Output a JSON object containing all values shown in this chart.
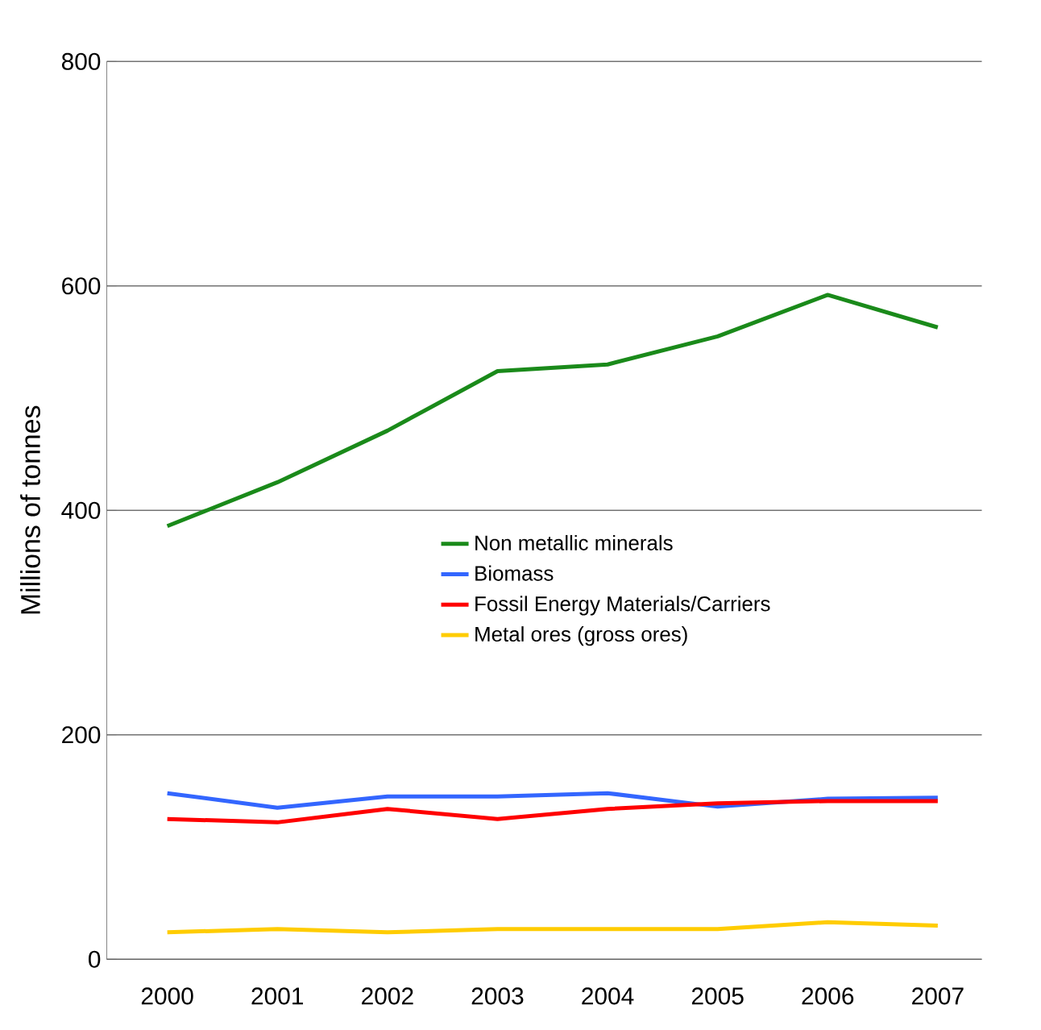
{
  "chart_data": {
    "type": "line",
    "ylabel": "Millions of tonnes",
    "categories": [
      "2000",
      "2001",
      "2002",
      "2003",
      "2004",
      "2005",
      "2006",
      "2007"
    ],
    "series": [
      {
        "name": "Non metallic minerals",
        "color": "#1a8a1a",
        "values": [
          386,
          425,
          471,
          524,
          530,
          555,
          592,
          563
        ]
      },
      {
        "name": "Biomass",
        "color": "#3366ff",
        "values": [
          148,
          135,
          145,
          145,
          148,
          136,
          143,
          144
        ]
      },
      {
        "name": "Fossil Energy Materials/Carriers",
        "color": "#ff0000",
        "values": [
          125,
          122,
          134,
          125,
          134,
          139,
          141,
          141
        ]
      },
      {
        "name": "Metal ores (gross ores)",
        "color": "#ffcc00",
        "values": [
          24,
          27,
          24,
          27,
          27,
          27,
          33,
          30
        ]
      }
    ],
    "ylim": [
      0,
      800
    ],
    "yticks": [
      0,
      200,
      400,
      600,
      800
    ],
    "grid": "y",
    "legend": "right",
    "marker": "none",
    "line_style": "solid"
  }
}
